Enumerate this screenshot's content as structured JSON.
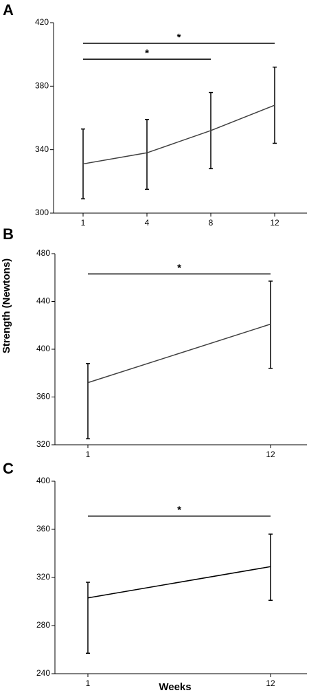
{
  "ylabel": "Strength (Newtons)",
  "xlabel": "Weeks",
  "chart_data": [
    {
      "type": "line",
      "panel_label": "A",
      "categories": [
        "1",
        "4",
        "8",
        "12"
      ],
      "values": [
        331,
        338,
        352,
        368
      ],
      "upper": [
        353,
        359,
        376,
        392
      ],
      "lower": [
        309,
        315,
        328,
        344
      ],
      "color": "#404040",
      "ylim": [
        300,
        420
      ],
      "yticks": [
        300,
        340,
        380,
        420
      ],
      "brackets": [
        {
          "from": 0,
          "to": 3,
          "y": 407,
          "label": "*"
        },
        {
          "from": 0,
          "to": 2,
          "y": 397,
          "label": "*"
        }
      ]
    },
    {
      "type": "line",
      "panel_label": "B",
      "categories": [
        "1",
        "12"
      ],
      "values": [
        372,
        421
      ],
      "upper": [
        388,
        457
      ],
      "lower": [
        325,
        384
      ],
      "color": "#404040",
      "ylim": [
        320,
        480
      ],
      "yticks": [
        320,
        360,
        400,
        440,
        480
      ],
      "brackets": [
        {
          "from": 0,
          "to": 1,
          "y": 463,
          "label": "*"
        }
      ]
    },
    {
      "type": "line",
      "panel_label": "C",
      "categories": [
        "1",
        "12"
      ],
      "values": [
        303,
        329
      ],
      "upper": [
        316,
        356
      ],
      "lower": [
        257,
        301
      ],
      "color": "#000000",
      "ylim": [
        240,
        400
      ],
      "yticks": [
        240,
        280,
        320,
        360,
        400
      ],
      "brackets": [
        {
          "from": 0,
          "to": 1,
          "y": 371,
          "label": "*"
        }
      ]
    }
  ]
}
